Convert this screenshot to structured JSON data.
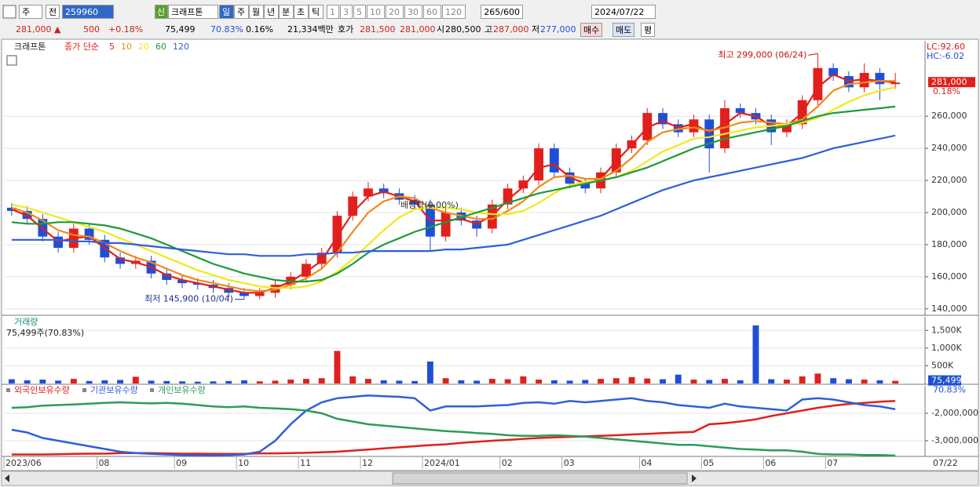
{
  "toolbar": {
    "period_unit": "주",
    "prev": "전",
    "code": "259960",
    "tag": "신",
    "name": "크래프톤",
    "intervals": [
      "일",
      "주",
      "월",
      "년",
      "분",
      "초",
      "틱"
    ],
    "minutes": [
      "1",
      "3",
      "5",
      "10",
      "20",
      "30",
      "60",
      "120"
    ],
    "count": "265/600",
    "date": "2024/07/22"
  },
  "quote": {
    "price": "281,000 ▲",
    "change": "500",
    "change_pct": "+0.18%",
    "volume": "75,499",
    "volume_ratio": "70.83%",
    "turnover": "0.16%",
    "amount": "21,334백만",
    "bid_label": "호가",
    "ask": "281,500",
    "bid": "281,000",
    "open_label": "시",
    "open": "280,500",
    "high_label": "고",
    "high": "287,000",
    "low_label": "저",
    "low": "277,000",
    "buttons": [
      "매수",
      "매도",
      "평"
    ]
  },
  "chart_data": [
    {
      "type": "candlestick",
      "legend_name": "크래프톤",
      "ma_label": "종가 단순",
      "lc_label": "LC:92.60",
      "hc_label": "HC:-6.02",
      "high_annotation": "최고 299,000 (06/24)",
      "low_annotation": "최저 145,900 (10/04)",
      "event_annotation": "배당락(0.00%)",
      "last_price_label": "281,000",
      "last_change_label": "0.18%",
      "end_date_label": "07/22",
      "up_color": "#e0201c",
      "down_color": "#1f4fd6",
      "grid": true,
      "categories": [
        "2023/06",
        null,
        null,
        null,
        null,
        null,
        "08",
        null,
        null,
        null,
        null,
        "09",
        null,
        null,
        null,
        "10",
        null,
        null,
        null,
        "11",
        null,
        null,
        null,
        "12",
        null,
        null,
        null,
        "2024/01",
        null,
        null,
        null,
        null,
        "02",
        null,
        null,
        null,
        "03",
        null,
        null,
        null,
        null,
        "04",
        null,
        null,
        null,
        "05",
        null,
        null,
        null,
        "06",
        null,
        null,
        null,
        "07",
        null,
        null,
        null,
        null
      ],
      "open": [
        203000,
        201000,
        196000,
        185000,
        178000,
        190000,
        183000,
        172000,
        168000,
        170000,
        162000,
        158000,
        156000,
        155000,
        153000,
        150000,
        148000,
        150000,
        155000,
        160000,
        168000,
        175000,
        198000,
        210000,
        215000,
        212000,
        208000,
        205000,
        185000,
        200000,
        195000,
        190000,
        205000,
        215000,
        220000,
        240000,
        225000,
        218000,
        215000,
        225000,
        240000,
        245000,
        262000,
        255000,
        250000,
        258000,
        240000,
        265000,
        262000,
        258000,
        250000,
        255000,
        270000,
        290000,
        285000,
        278000,
        287000,
        280000
      ],
      "high": [
        206000,
        204000,
        199000,
        188000,
        193000,
        193000,
        186000,
        175000,
        173000,
        173000,
        165000,
        161000,
        159000,
        158000,
        156000,
        153000,
        153000,
        158000,
        163000,
        171000,
        178000,
        201000,
        213000,
        219000,
        218000,
        215000,
        211000,
        208000,
        203000,
        203000,
        198000,
        208000,
        218000,
        223000,
        243000,
        243000,
        228000,
        221000,
        228000,
        243000,
        248000,
        265000,
        265000,
        258000,
        261000,
        261000,
        270000,
        268000,
        265000,
        261000,
        258000,
        273000,
        299000,
        293000,
        288000,
        293000,
        290000,
        287000
      ],
      "low": [
        198000,
        193000,
        182000,
        175000,
        175000,
        180000,
        169000,
        165000,
        165000,
        159000,
        155000,
        153000,
        152000,
        150000,
        147000,
        145900,
        146000,
        147000,
        152000,
        157000,
        165000,
        172000,
        195000,
        207000,
        209000,
        205000,
        202000,
        176000,
        182000,
        192000,
        185000,
        187000,
        202000,
        212000,
        217000,
        222000,
        215000,
        212000,
        212000,
        222000,
        237000,
        242000,
        252000,
        247000,
        247000,
        225000,
        237000,
        259000,
        255000,
        242000,
        247000,
        252000,
        267000,
        282000,
        275000,
        275000,
        270000,
        277000
      ],
      "close": [
        201000,
        196000,
        185000,
        178000,
        190000,
        183000,
        172000,
        168000,
        170000,
        162000,
        158000,
        156000,
        155000,
        153000,
        150000,
        148000,
        150000,
        155000,
        160000,
        168000,
        175000,
        198000,
        210000,
        215000,
        212000,
        208000,
        205000,
        185000,
        200000,
        195000,
        190000,
        205000,
        215000,
        220000,
        240000,
        225000,
        218000,
        215000,
        225000,
        240000,
        245000,
        262000,
        255000,
        250000,
        258000,
        240000,
        265000,
        262000,
        258000,
        250000,
        255000,
        270000,
        290000,
        285000,
        278000,
        287000,
        280000,
        281000
      ],
      "series": [
        {
          "name": "5",
          "color": "#e0201c",
          "values": [
            202000,
            198000,
            190000,
            182000,
            184000,
            185000,
            178000,
            171000,
            169000,
            166000,
            161000,
            158000,
            156000,
            154000,
            152000,
            150000,
            150000,
            153000,
            157000,
            163000,
            170000,
            185000,
            200000,
            210000,
            213000,
            210000,
            207000,
            195000,
            195000,
            196000,
            193000,
            198000,
            208000,
            216000,
            228000,
            230000,
            222000,
            218000,
            221000,
            232000,
            242000,
            253000,
            257000,
            253000,
            255000,
            250000,
            255000,
            262000,
            260000,
            254000,
            254000,
            262000,
            278000,
            286000,
            282000,
            283000,
            282000,
            281000
          ]
        },
        {
          "name": "10",
          "color": "#f08a1c",
          "values": [
            203000,
            200000,
            195000,
            189000,
            186000,
            185000,
            181000,
            176000,
            172000,
            169000,
            165000,
            161000,
            158000,
            156000,
            154000,
            152000,
            151000,
            152000,
            155000,
            159000,
            165000,
            175000,
            188000,
            200000,
            207000,
            210000,
            209000,
            203000,
            200000,
            198000,
            196000,
            196000,
            201000,
            207000,
            216000,
            222000,
            223000,
            221000,
            221000,
            226000,
            234000,
            244000,
            250000,
            252000,
            253000,
            251000,
            253000,
            256000,
            257000,
            256000,
            255000,
            258000,
            266000,
            276000,
            280000,
            281000,
            282000,
            282000
          ]
        },
        {
          "name": "20",
          "color": "#f2e81a",
          "values": [
            205000,
            203000,
            200000,
            197000,
            194000,
            191000,
            188000,
            184000,
            180000,
            176000,
            172000,
            168000,
            164000,
            161000,
            158000,
            156000,
            154000,
            153000,
            153000,
            154000,
            157000,
            163000,
            171000,
            180000,
            189000,
            197000,
            202000,
            203000,
            203000,
            202000,
            200000,
            199000,
            199000,
            201000,
            206000,
            212000,
            217000,
            219000,
            220000,
            222000,
            226000,
            232000,
            238000,
            242000,
            246000,
            247000,
            249000,
            251000,
            253000,
            254000,
            255000,
            256000,
            259000,
            264000,
            269000,
            273000,
            276000,
            278000
          ]
        },
        {
          "name": "60",
          "color": "#1e9a3a",
          "values": [
            194000,
            193000,
            193000,
            194000,
            194000,
            193000,
            192000,
            190000,
            187000,
            184000,
            180000,
            176000,
            172000,
            168000,
            165000,
            162000,
            160000,
            158000,
            157000,
            157000,
            158000,
            162000,
            168000,
            175000,
            180000,
            184000,
            188000,
            191000,
            194000,
            197000,
            200000,
            203000,
            206000,
            209000,
            212000,
            214000,
            216000,
            218000,
            220000,
            222000,
            225000,
            228000,
            232000,
            236000,
            240000,
            243000,
            246000,
            248000,
            250000,
            252000,
            254000,
            257000,
            260000,
            262000,
            263000,
            264000,
            265000,
            266000
          ]
        },
        {
          "name": "120",
          "color": "#2f5fd8",
          "values": [
            183000,
            183000,
            183000,
            183000,
            182000,
            182000,
            181000,
            181000,
            180000,
            179000,
            178000,
            177000,
            176000,
            175000,
            174000,
            174000,
            173000,
            173000,
            173000,
            174000,
            174000,
            175000,
            175000,
            176000,
            176000,
            176000,
            176000,
            176000,
            177000,
            177000,
            178000,
            179000,
            180000,
            183000,
            186000,
            189000,
            192000,
            195000,
            198000,
            202000,
            206000,
            210000,
            214000,
            217000,
            220000,
            222000,
            224000,
            226000,
            228000,
            230000,
            232000,
            234000,
            237000,
            240000,
            242000,
            244000,
            246000,
            248000
          ]
        }
      ],
      "ylim": [
        136000,
        307000
      ],
      "yticks": [
        {
          "value": 140000,
          "label": "140,000"
        },
        {
          "value": 160000,
          "label": "160,000"
        },
        {
          "value": 180000,
          "label": "180,000"
        },
        {
          "value": 200000,
          "label": "200,000"
        },
        {
          "value": 220000,
          "label": "220,000"
        },
        {
          "value": 240000,
          "label": "240,000"
        },
        {
          "value": 260000,
          "label": "260,000"
        }
      ]
    },
    {
      "type": "bar",
      "title": "거래량",
      "subtitle": "75,499주(70.83%)",
      "last_label": "75,499",
      "last_ratio_label": "70.83%",
      "up_color": "#e0201c",
      "down_color": "#1f4fd6",
      "values": [
        120000,
        90000,
        110000,
        80000,
        130000,
        70000,
        90000,
        100000,
        190000,
        80000,
        70000,
        60000,
        50000,
        60000,
        70000,
        90000,
        60000,
        80000,
        110000,
        130000,
        150000,
        920000,
        200000,
        130000,
        90000,
        80000,
        70000,
        620000,
        150000,
        90000,
        80000,
        130000,
        120000,
        200000,
        110000,
        90000,
        80000,
        100000,
        130000,
        150000,
        180000,
        140000,
        120000,
        250000,
        110000,
        100000,
        130000,
        90000,
        1640000,
        120000,
        110000,
        200000,
        280000,
        150000,
        120000,
        110000,
        90000,
        75499
      ],
      "ylim": [
        0,
        1860000
      ],
      "yticks": [
        {
          "value": 500000,
          "label": "500K"
        },
        {
          "value": 1000000,
          "label": "1,000K"
        },
        {
          "value": 1500000,
          "label": "1,500K"
        }
      ]
    },
    {
      "type": "line",
      "series": [
        {
          "name": "외국인보유수량",
          "color": "#e0201c",
          "values": [
            -3500000,
            -3500000,
            -3500000,
            -3490000,
            -3480000,
            -3470000,
            -3470000,
            -3450000,
            -3450000,
            -3450000,
            -3460000,
            -3470000,
            -3470000,
            -3480000,
            -3480000,
            -3480000,
            -3460000,
            -3460000,
            -3450000,
            -3440000,
            -3420000,
            -3400000,
            -3360000,
            -3320000,
            -3280000,
            -3240000,
            -3200000,
            -3160000,
            -3130000,
            -3080000,
            -3040000,
            -3000000,
            -2970000,
            -2930000,
            -2900000,
            -2880000,
            -2860000,
            -2840000,
            -2820000,
            -2800000,
            -2770000,
            -2750000,
            -2720000,
            -2700000,
            -2680000,
            -2400000,
            -2360000,
            -2300000,
            -2220000,
            -2100000,
            -2000000,
            -1900000,
            -1800000,
            -1720000,
            -1660000,
            -1620000,
            -1580000,
            -1550000
          ]
        },
        {
          "name": "기관보유수량",
          "color": "#2f5fd8",
          "values": [
            -2600000,
            -2700000,
            -2900000,
            -3000000,
            -3100000,
            -3200000,
            -3300000,
            -3400000,
            -3450000,
            -3480000,
            -3500000,
            -3520000,
            -3530000,
            -3540000,
            -3520000,
            -3500000,
            -3400000,
            -3000000,
            -2400000,
            -1900000,
            -1600000,
            -1450000,
            -1400000,
            -1350000,
            -1380000,
            -1400000,
            -1450000,
            -1900000,
            -1750000,
            -1750000,
            -1750000,
            -1720000,
            -1700000,
            -1620000,
            -1600000,
            -1650000,
            -1550000,
            -1600000,
            -1550000,
            -1500000,
            -1450000,
            -1550000,
            -1600000,
            -1700000,
            -1750000,
            -1800000,
            -1650000,
            -1750000,
            -1800000,
            -1850000,
            -1900000,
            -1500000,
            -1450000,
            -1500000,
            -1600000,
            -1700000,
            -1750000,
            -1850000
          ]
        },
        {
          "name": "개인보유수량",
          "color": "#2e9a5a",
          "values": [
            -1800000,
            -1780000,
            -1720000,
            -1700000,
            -1680000,
            -1650000,
            -1620000,
            -1600000,
            -1620000,
            -1640000,
            -1620000,
            -1650000,
            -1700000,
            -1750000,
            -1780000,
            -1750000,
            -1800000,
            -1820000,
            -1850000,
            -1900000,
            -2000000,
            -2200000,
            -2300000,
            -2400000,
            -2450000,
            -2500000,
            -2550000,
            -2600000,
            -2650000,
            -2680000,
            -2720000,
            -2750000,
            -2800000,
            -2820000,
            -2820000,
            -2800000,
            -2820000,
            -2850000,
            -2900000,
            -2950000,
            -3000000,
            -3050000,
            -3100000,
            -3150000,
            -3150000,
            -3200000,
            -3250000,
            -3300000,
            -3320000,
            -3350000,
            -3350000,
            -3400000,
            -3480000,
            -3500000,
            -3500000,
            -3520000,
            -3520000,
            -3540000
          ]
        }
      ],
      "ylim": [
        -3570000,
        -1000000
      ],
      "yticks": [
        {
          "value": -2000000,
          "label": "-2,000,000"
        },
        {
          "value": -3000000,
          "label": "-3,000,000"
        }
      ]
    }
  ]
}
